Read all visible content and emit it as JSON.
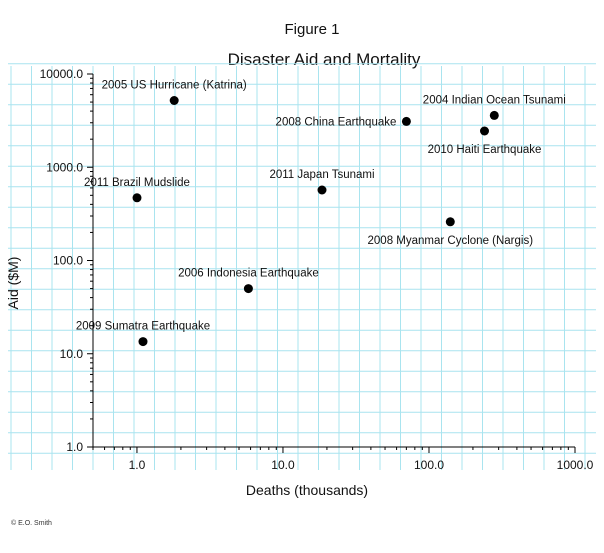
{
  "figure_label": "Figure 1",
  "credit": "© E.O. Smith",
  "chart_data": {
    "type": "scatter",
    "title": "Disaster Aid and Mortality",
    "xlabel": "Deaths (thousands)",
    "ylabel": "Aid ($M)",
    "xscale": "log",
    "yscale": "log",
    "xlim": [
      0.5,
      1000
    ],
    "ylim": [
      1,
      10000
    ],
    "xticks": [
      "1.0",
      "10.0",
      "100.0",
      "1000.0"
    ],
    "yticks": [
      "1.0",
      "10.0",
      "100.0",
      "1000.0",
      "10000.0"
    ],
    "grid": true,
    "colors": {
      "grid": "#a9e4ef",
      "marker": "#000000"
    },
    "points": [
      {
        "label": "2005 US Hurricane (Katrina)",
        "x": 1.8,
        "y": 5200,
        "label_pos": "above"
      },
      {
        "label": "2004 Indian Ocean Tsunami",
        "x": 280,
        "y": 3600,
        "label_pos": "above"
      },
      {
        "label": "2008 China Earthquake",
        "x": 70,
        "y": 3100,
        "label_pos": "left"
      },
      {
        "label": "2010 Haiti Earthquake",
        "x": 240,
        "y": 2450,
        "label_pos": "below"
      },
      {
        "label": "2011 Brazil Mudslide",
        "x": 1.0,
        "y": 470,
        "label_pos": "above"
      },
      {
        "label": "2011 Japan Tsunami",
        "x": 18.5,
        "y": 570,
        "label_pos": "above"
      },
      {
        "label": "2008 Myanmar Cyclone (Nargis)",
        "x": 140,
        "y": 260,
        "label_pos": "below"
      },
      {
        "label": "2006 Indonesia Earthquake",
        "x": 5.8,
        "y": 50,
        "label_pos": "above"
      },
      {
        "label": "2009 Sumatra Earthquake",
        "x": 1.1,
        "y": 13.5,
        "label_pos": "above"
      }
    ]
  }
}
